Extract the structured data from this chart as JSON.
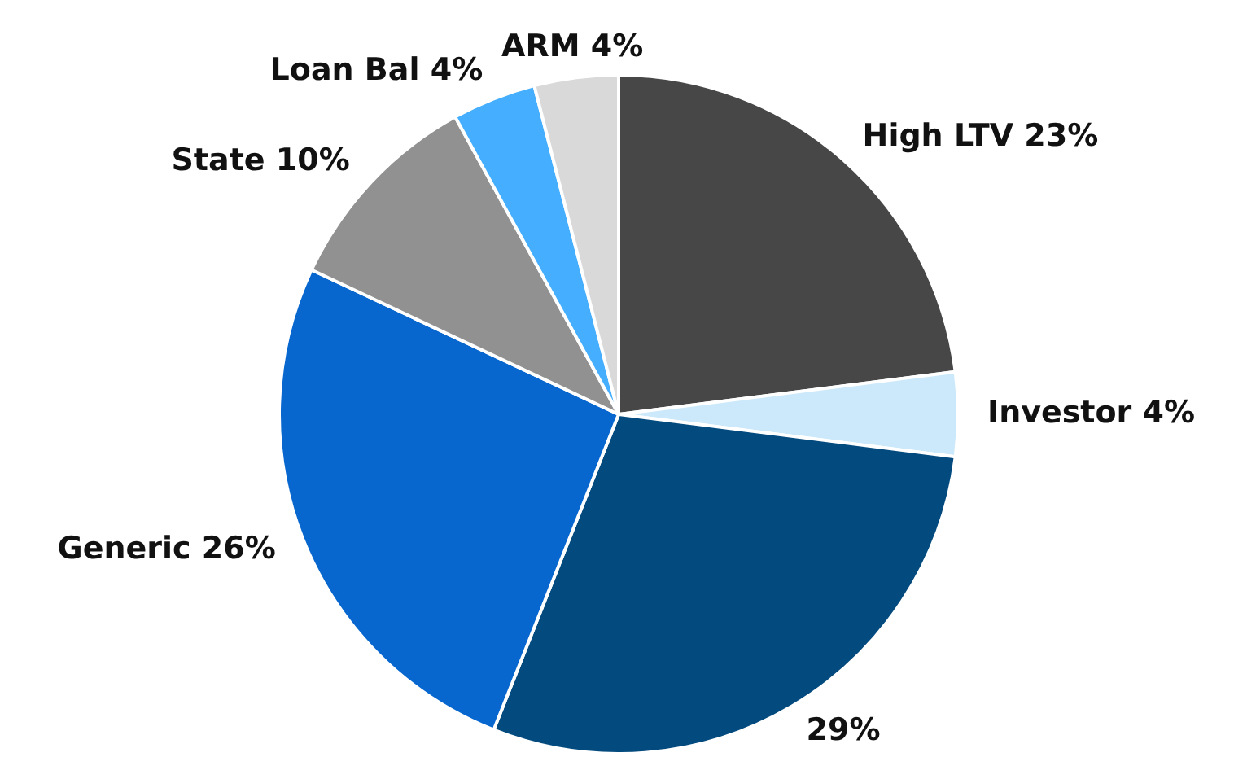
{
  "chart_data": {
    "type": "pie",
    "categories": [
      "High LTV",
      "Investor",
      null,
      "Generic",
      "State",
      "Loan Bal",
      "ARM"
    ],
    "values": [
      23,
      4,
      29,
      26,
      10,
      4,
      4
    ],
    "value_labels": [
      "23%",
      "4%",
      "29%",
      "26%",
      "10%",
      "4%",
      "4%"
    ],
    "colors": [
      "#474747",
      "#cce9fb",
      "#034a7e",
      "#0767cf",
      "#919191",
      "#45aefe",
      "#d9d9d9"
    ],
    "legend": false
  }
}
